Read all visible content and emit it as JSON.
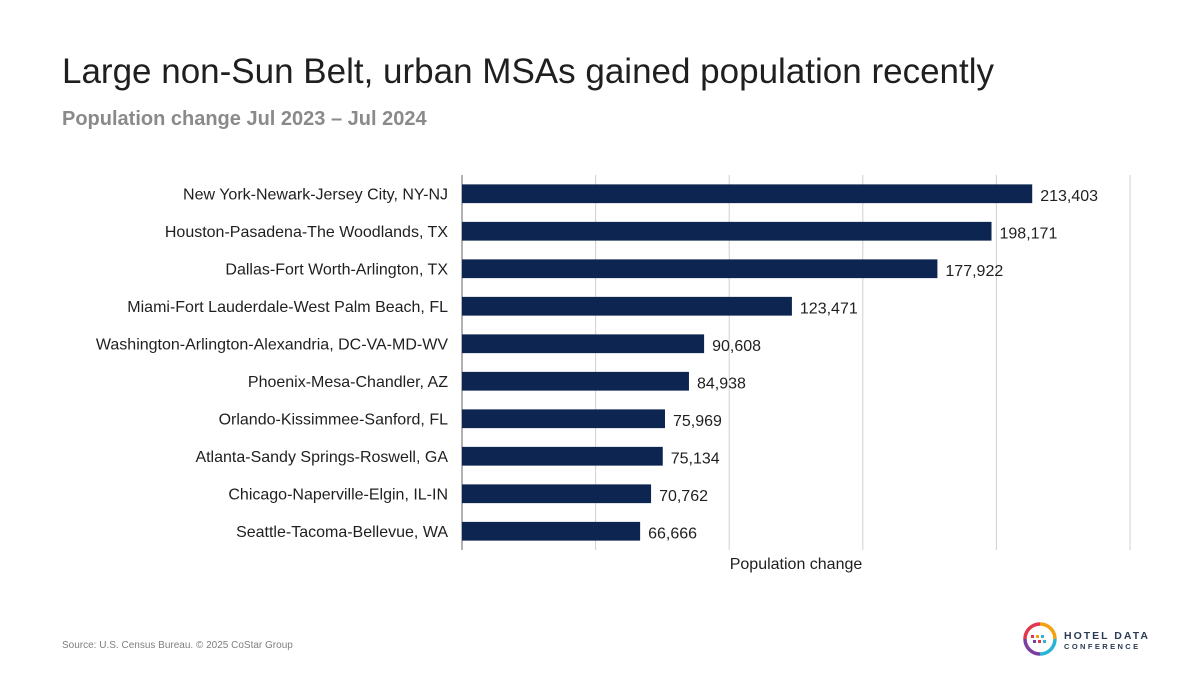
{
  "slide": {
    "title": "Large non-Sun Belt, urban MSAs gained population recently",
    "subtitle": "Population change Jul 2023 – Jul 2024",
    "source": "Source: U.S. Census Bureau. © 2025 CoStar Group",
    "logo": {
      "line1": "HOTEL DATA",
      "line2": "CONFERENCE",
      "icon": "hotel-data-conference-logo-icon"
    }
  },
  "colors": {
    "bar": "#0d2651",
    "grid": "#d0d0d0",
    "axis": "#7f7f7f",
    "title": "#1f1f1f",
    "subtitle": "#8a8a8a"
  },
  "chart_data": {
    "type": "bar",
    "orientation": "horizontal",
    "categories": [
      "New York-Newark-Jersey City, NY-NJ",
      "Houston-Pasadena-The Woodlands, TX",
      "Dallas-Fort Worth-Arlington, TX",
      "Miami-Fort Lauderdale-West Palm Beach, FL",
      "Washington-Arlington-Alexandria, DC-VA-MD-WV",
      "Phoenix-Mesa-Chandler, AZ",
      "Orlando-Kissimmee-Sanford, FL",
      "Atlanta-Sandy Springs-Roswell, GA",
      "Chicago-Naperville-Elgin, IL-IN",
      "Seattle-Tacoma-Bellevue, WA"
    ],
    "values": [
      213403,
      198171,
      177922,
      123471,
      90608,
      84938,
      75969,
      75134,
      70762,
      66666
    ],
    "data_labels": [
      "213,403",
      "198,171",
      "177,922",
      "123,471",
      "90,608",
      "84,938",
      "75,969",
      "75,134",
      "70,762",
      "66,666"
    ],
    "xlabel": "Population change",
    "ylabel": "",
    "xlim": [
      0,
      250000
    ],
    "gridlines": [
      0,
      50000,
      100000,
      150000,
      200000,
      250000
    ],
    "grid": true,
    "tick_labels_shown": false,
    "legend": "none"
  }
}
